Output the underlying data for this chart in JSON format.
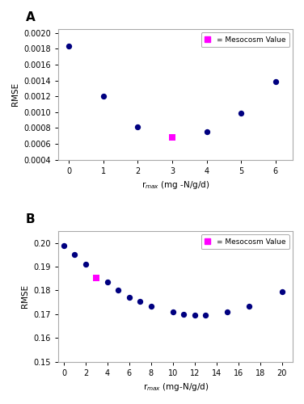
{
  "panel_A": {
    "label": "A",
    "blue_x": [
      0,
      1,
      2,
      4,
      5,
      6
    ],
    "blue_y": [
      0.00183,
      0.0012,
      0.00081,
      0.00075,
      0.00099,
      0.00139
    ],
    "magenta_x": [
      3
    ],
    "magenta_y": [
      0.00068
    ],
    "xlim": [
      -0.3,
      6.5
    ],
    "ylim": [
      0.0004,
      0.00205
    ],
    "yticks": [
      0.0004,
      0.0006,
      0.0008,
      0.001,
      0.0012,
      0.0014,
      0.0016,
      0.0018,
      0.002
    ],
    "xticks": [
      0,
      1,
      2,
      3,
      4,
      5,
      6
    ],
    "xlabel": "r$_{max}$ (mg -N/g/d)",
    "ylabel": "RMSE"
  },
  "panel_B": {
    "label": "B",
    "blue_x": [
      0,
      1,
      2,
      4,
      5,
      6,
      7,
      8,
      10,
      11,
      12,
      13,
      15,
      17,
      20
    ],
    "blue_y": [
      0.199,
      0.195,
      0.191,
      0.1835,
      0.18,
      0.177,
      0.1753,
      0.1733,
      0.1708,
      0.1698,
      0.1695,
      0.1695,
      0.1708,
      0.1733,
      0.1793
    ],
    "magenta_x": [
      3
    ],
    "magenta_y": [
      0.1853
    ],
    "xlim": [
      -0.5,
      21
    ],
    "ylim": [
      0.15,
      0.205
    ],
    "yticks": [
      0.15,
      0.16,
      0.17,
      0.18,
      0.19,
      0.2
    ],
    "xticks": [
      0,
      2,
      4,
      6,
      8,
      10,
      12,
      14,
      16,
      18,
      20
    ],
    "xlabel": "r$_{max}$ (mg-N/g/d)",
    "ylabel": "RMSE"
  },
  "blue_color": "#000080",
  "magenta_color": "#FF00FF",
  "dot_size": 28,
  "magenta_size": 28,
  "legend_label": "= Mesocosm Value",
  "bg_color": "#FFFFFF"
}
